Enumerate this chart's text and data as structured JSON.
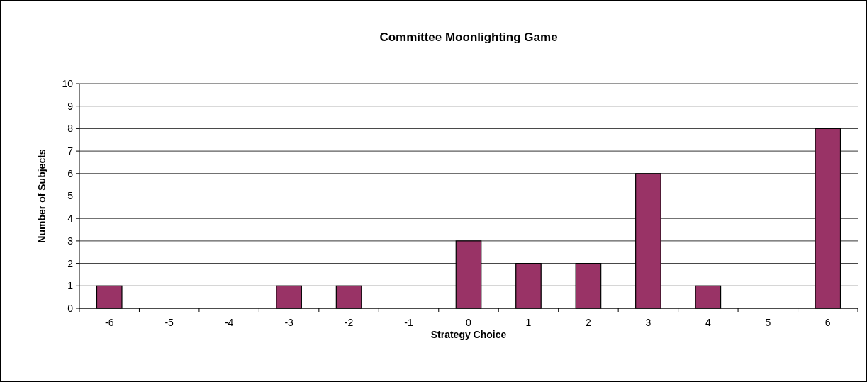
{
  "chart_data": {
    "type": "bar",
    "title": "Committee Moonlighting Game",
    "xlabel": "Strategy Choice",
    "ylabel": "Number of Subjects",
    "categories": [
      "-6",
      "-5",
      "-4",
      "-3",
      "-2",
      "-1",
      "0",
      "1",
      "2",
      "3",
      "4",
      "5",
      "6"
    ],
    "values": [
      1,
      0,
      0,
      1,
      1,
      0,
      3,
      2,
      2,
      6,
      1,
      0,
      8
    ],
    "color": "#993366",
    "ylim": [
      0,
      10
    ],
    "yticks": [
      0,
      1,
      2,
      3,
      4,
      5,
      6,
      7,
      8,
      9,
      10
    ],
    "grid": "y"
  }
}
